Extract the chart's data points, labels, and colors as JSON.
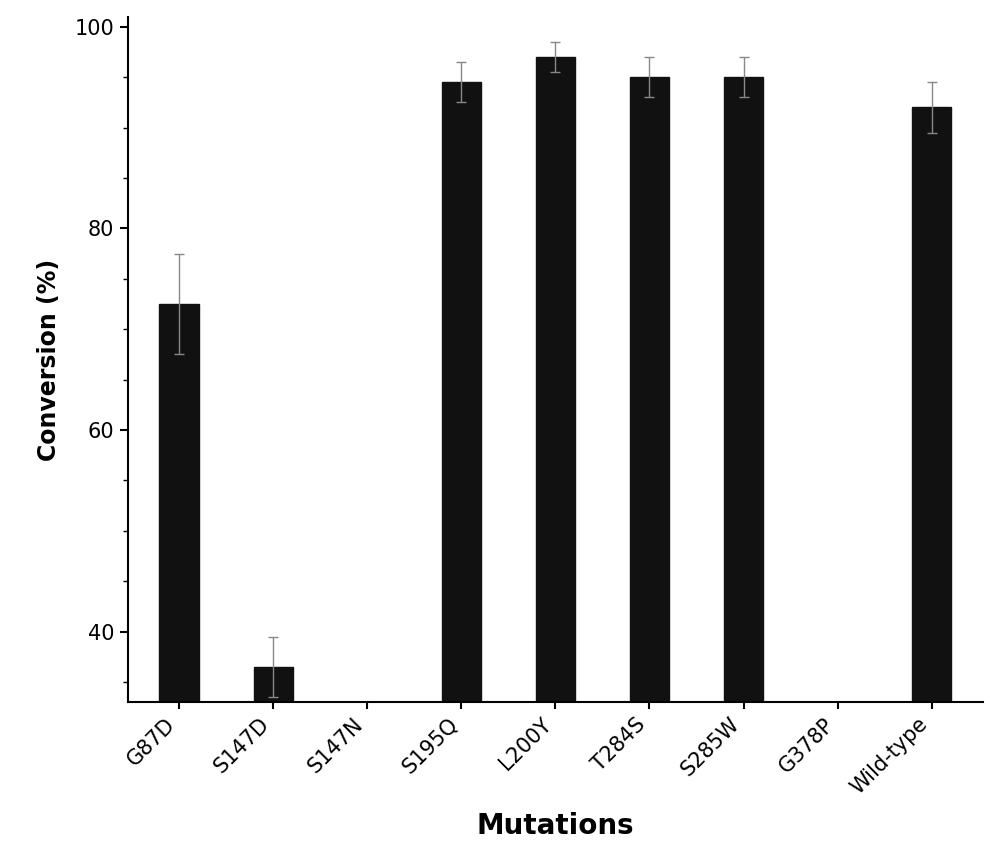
{
  "categories": [
    "G87D",
    "S147D",
    "S147N",
    "S195Q",
    "L200Y",
    "T284S",
    "S285W",
    "G378P",
    "Wild-type"
  ],
  "values": [
    72.5,
    36.5,
    0,
    94.5,
    97.0,
    95.0,
    95.0,
    0,
    92.0
  ],
  "errors": [
    5.0,
    3.0,
    0,
    2.0,
    1.5,
    2.0,
    2.0,
    0,
    2.5
  ],
  "bar_color": "#111111",
  "error_color": "#888888",
  "background_color": "#ffffff",
  "ylabel": "Conversion (%)",
  "xlabel": "Mutations",
  "ylim": [
    33,
    101
  ],
  "yticks": [
    40,
    60,
    80,
    100
  ],
  "ylabel_fontsize": 17,
  "xlabel_fontsize": 20,
  "tick_fontsize": 15,
  "bar_width": 0.42
}
